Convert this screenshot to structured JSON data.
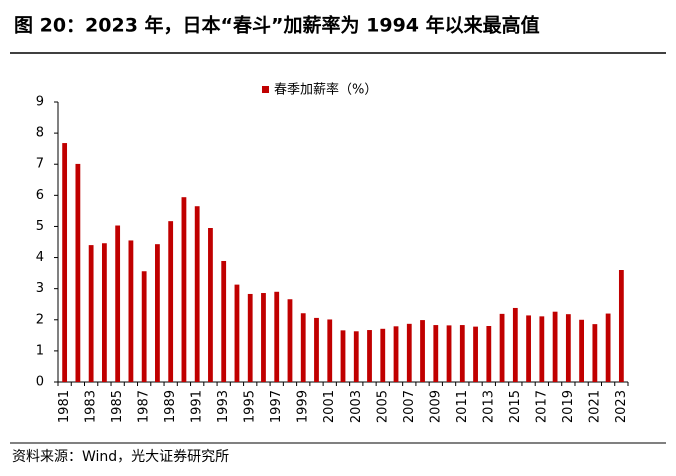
{
  "chart_data": {
    "type": "bar",
    "title": "图 20：2023 年，日本“春斗”加薪率为 1994 年以来最高值",
    "source": "资料来源：Wind，光大证券研究所",
    "categories": [
      "1981",
      null,
      "1983",
      null,
      "1985",
      null,
      "1987",
      null,
      "1989",
      null,
      "1991",
      null,
      "1993",
      null,
      "1995",
      null,
      "1997",
      null,
      "1999",
      null,
      "2001",
      null,
      "2003",
      null,
      "2005",
      null,
      "2007",
      null,
      "2009",
      null,
      "2011",
      null,
      "2013",
      null,
      "2015",
      null,
      "2017",
      null,
      "2019",
      null,
      "2021",
      null,
      "2023"
    ],
    "series": [
      {
        "name": "春季加薪率（%）",
        "color": "#c00000",
        "values": [
          7.68,
          7.01,
          4.4,
          4.46,
          5.03,
          4.55,
          3.56,
          4.43,
          5.17,
          5.94,
          5.65,
          4.95,
          3.89,
          3.13,
          2.83,
          2.86,
          2.9,
          2.66,
          2.21,
          2.06,
          2.01,
          1.66,
          1.63,
          1.67,
          1.71,
          1.79,
          1.87,
          1.99,
          1.83,
          1.82,
          1.83,
          1.78,
          1.8,
          2.19,
          2.38,
          2.14,
          2.11,
          2.26,
          2.18,
          2.0,
          1.86,
          2.2,
          3.6
        ]
      }
    ],
    "ylim": [
      0,
      9
    ],
    "yticks": [
      0,
      1,
      2,
      3,
      4,
      5,
      6,
      7,
      8,
      9
    ],
    "grid": false,
    "legend": "top"
  }
}
